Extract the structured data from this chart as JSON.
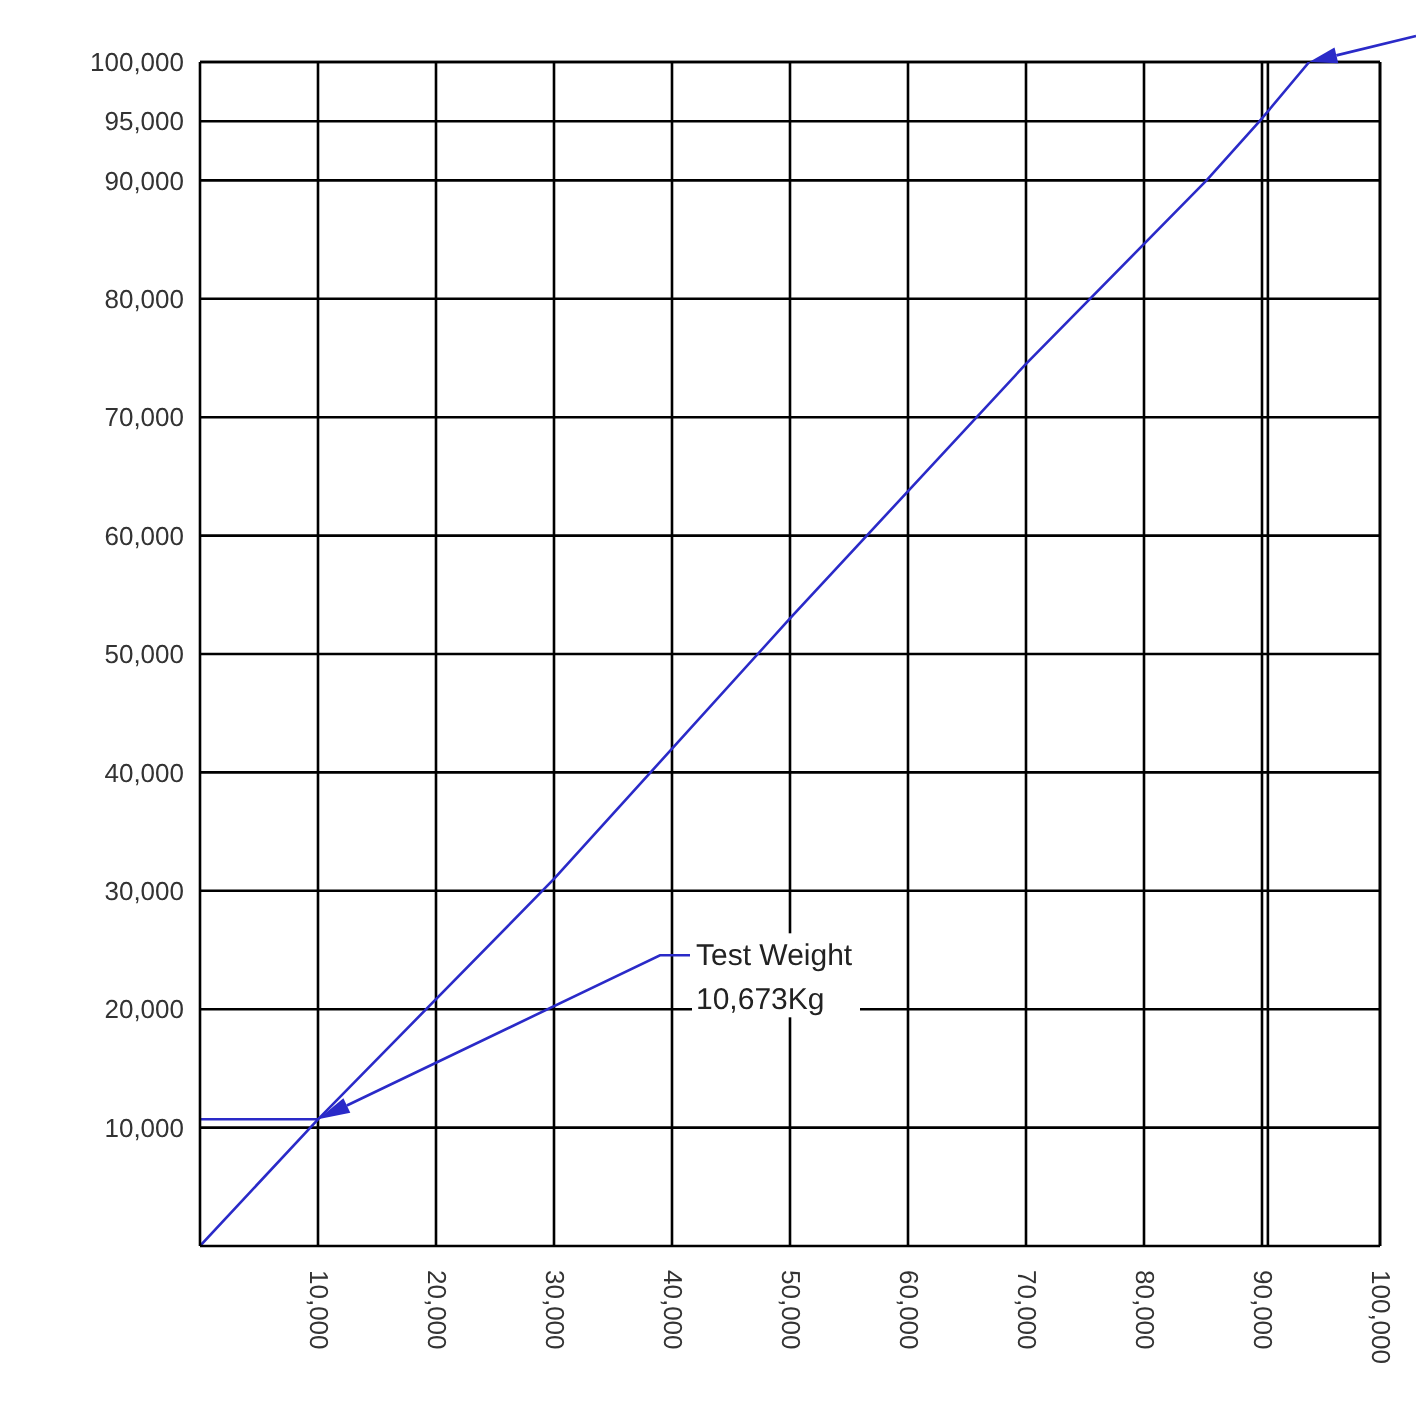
{
  "chart_data": {
    "type": "line",
    "xlim": [
      0,
      100000
    ],
    "ylim": [
      0,
      100000
    ],
    "xticks": [
      {
        "value": 10000,
        "label": "10,000"
      },
      {
        "value": 20000,
        "label": "20,000"
      },
      {
        "value": 30000,
        "label": "30,000"
      },
      {
        "value": 40000,
        "label": "40,000"
      },
      {
        "value": 50000,
        "label": "50,000"
      },
      {
        "value": 60000,
        "label": "60,000"
      },
      {
        "value": 70000,
        "label": "70,000"
      },
      {
        "value": 80000,
        "label": "80,000"
      },
      {
        "value": 90000,
        "label": "90,000"
      },
      {
        "value": 100000,
        "label": "100,000"
      }
    ],
    "yticks": [
      {
        "value": 10000,
        "label": "10,000"
      },
      {
        "value": 20000,
        "label": "20,000"
      },
      {
        "value": 30000,
        "label": "30,000"
      },
      {
        "value": 40000,
        "label": "40,000"
      },
      {
        "value": 50000,
        "label": "50,000"
      },
      {
        "value": 60000,
        "label": "60,000"
      },
      {
        "value": 70000,
        "label": "70,000"
      },
      {
        "value": 80000,
        "label": "80,000"
      },
      {
        "value": 90000,
        "label": "90,000"
      },
      {
        "value": 95000,
        "label": "95,000"
      },
      {
        "value": 100000,
        "label": "100,000"
      }
    ],
    "grid": true,
    "marker": "none",
    "line_style": "solid",
    "series": [
      {
        "color": "#2a2ac8",
        "x": [
          0,
          10000,
          30000,
          50000,
          70000,
          85300,
          89800,
          94000
        ],
        "values": [
          0,
          10700,
          31000,
          53000,
          74500,
          90000,
          95000,
          100000
        ]
      },
      {
        "color": "#2a2ac8",
        "x": [
          0,
          10000
        ],
        "values": [
          10700,
          10700
        ]
      }
    ],
    "ref_lines": [
      {
        "axis": "x",
        "value": 90500,
        "color": "#000000"
      }
    ],
    "annotations": [
      "Test Weight\n10,673Kg"
    ]
  }
}
